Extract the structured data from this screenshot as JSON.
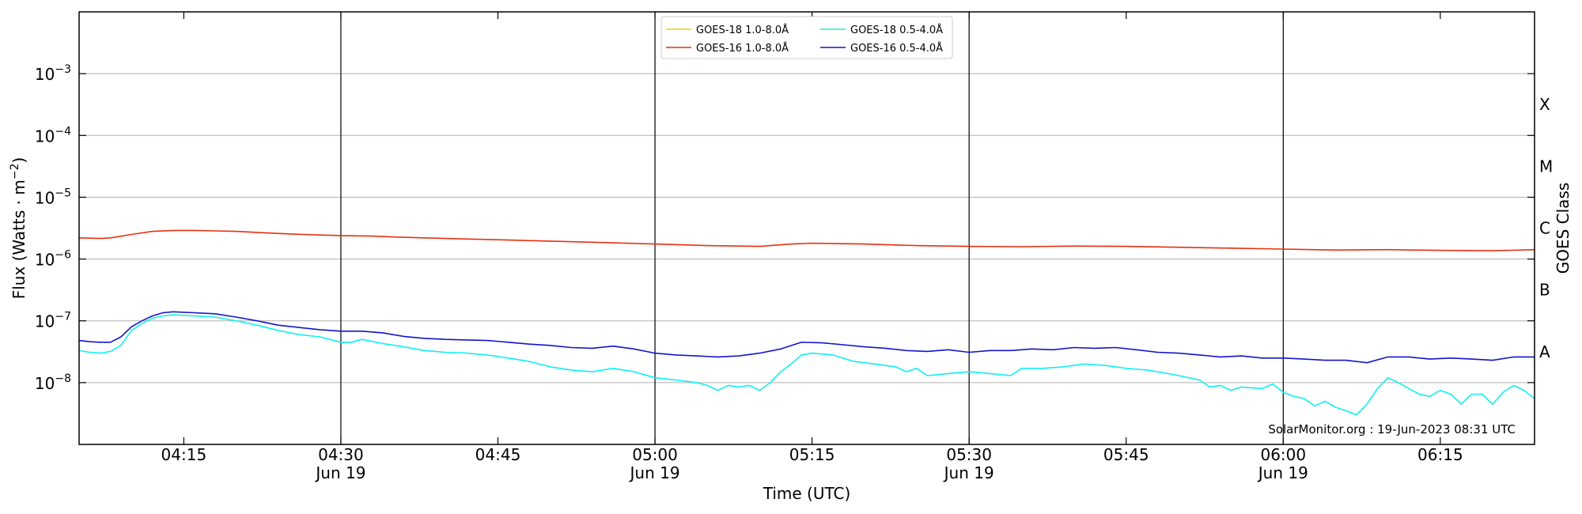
{
  "chart_data": {
    "type": "line",
    "x_range": [
      "2023-06-19T04:05",
      "2023-06-19T06:24"
    ],
    "x_ticks": [
      {
        "time": "04:15",
        "label": "04:15",
        "sublabel": ""
      },
      {
        "time": "04:30",
        "label": "04:30",
        "sublabel": "Jun 19"
      },
      {
        "time": "04:45",
        "label": "04:45",
        "sublabel": ""
      },
      {
        "time": "05:00",
        "label": "05:00",
        "sublabel": "Jun 19"
      },
      {
        "time": "05:15",
        "label": "05:15",
        "sublabel": ""
      },
      {
        "time": "05:30",
        "label": "05:30",
        "sublabel": "Jun 19"
      },
      {
        "time": "05:45",
        "label": "05:45",
        "sublabel": ""
      },
      {
        "time": "06:00",
        "label": "06:00",
        "sublabel": "Jun 19"
      },
      {
        "time": "06:15",
        "label": "06:15",
        "sublabel": ""
      }
    ],
    "day_lines": [
      "04:30",
      "05:00",
      "05:30",
      "06:00"
    ],
    "y_scale": "log",
    "y_range": [
      1e-09,
      0.01
    ],
    "y_ticks": [
      {
        "value": 1e-08,
        "mantissa": "10",
        "exp": "−8"
      },
      {
        "value": 1e-07,
        "mantissa": "10",
        "exp": "−7"
      },
      {
        "value": 1e-06,
        "mantissa": "10",
        "exp": "−6"
      },
      {
        "value": 1e-05,
        "mantissa": "10",
        "exp": "−5"
      },
      {
        "value": 0.0001,
        "mantissa": "10",
        "exp": "−4"
      },
      {
        "value": 0.001,
        "mantissa": "10",
        "exp": "−3"
      }
    ],
    "xlabel": "Time (UTC)",
    "ylabel_prefix": "Flux (Watts · m",
    "ylabel_exp": "−2",
    "ylabel_suffix": ")",
    "right_label": "GOES Class",
    "goes_classes": [
      {
        "label": "X",
        "value": 0.0003162
      },
      {
        "label": "M",
        "value": 3.162e-05
      },
      {
        "label": "C",
        "value": 3.162e-06
      },
      {
        "label": "B",
        "value": 3.162e-07
      },
      {
        "label": "A",
        "value": 3.162e-08
      }
    ],
    "horizontal_grid": true,
    "legend_position": "top-center",
    "watermark": "SolarMonitor.org : 19-Jun-2023 08:31 UTC",
    "series": [
      {
        "name": "GOES-18 1.0-8.0Å",
        "color": "#f0d000",
        "points": []
      },
      {
        "name": "GOES-16 1.0-8.0Å",
        "color": "#e83010",
        "points": [
          [
            "04:05",
            2.2e-06
          ],
          [
            "04:07",
            2.15e-06
          ],
          [
            "04:08",
            2.2e-06
          ],
          [
            "04:10",
            2.5e-06
          ],
          [
            "04:12",
            2.8e-06
          ],
          [
            "04:14",
            2.9e-06
          ],
          [
            "04:16",
            2.9e-06
          ],
          [
            "04:18",
            2.85e-06
          ],
          [
            "04:20",
            2.8e-06
          ],
          [
            "04:22",
            2.7e-06
          ],
          [
            "04:25",
            2.55e-06
          ],
          [
            "04:28",
            2.45e-06
          ],
          [
            "04:30",
            2.4e-06
          ],
          [
            "04:33",
            2.35e-06
          ],
          [
            "04:36",
            2.25e-06
          ],
          [
            "04:40",
            2.15e-06
          ],
          [
            "04:45",
            2.05e-06
          ],
          [
            "04:50",
            1.95e-06
          ],
          [
            "04:55",
            1.85e-06
          ],
          [
            "05:00",
            1.75e-06
          ],
          [
            "05:05",
            1.65e-06
          ],
          [
            "05:10",
            1.6e-06
          ],
          [
            "05:13",
            1.75e-06
          ],
          [
            "05:15",
            1.8e-06
          ],
          [
            "05:20",
            1.75e-06
          ],
          [
            "05:25",
            1.65e-06
          ],
          [
            "05:30",
            1.6e-06
          ],
          [
            "05:35",
            1.58e-06
          ],
          [
            "05:40",
            1.62e-06
          ],
          [
            "05:45",
            1.6e-06
          ],
          [
            "05:50",
            1.55e-06
          ],
          [
            "05:55",
            1.5e-06
          ],
          [
            "06:00",
            1.45e-06
          ],
          [
            "06:05",
            1.4e-06
          ],
          [
            "06:10",
            1.42e-06
          ],
          [
            "06:15",
            1.38e-06
          ],
          [
            "06:20",
            1.36e-06
          ],
          [
            "06:24",
            1.42e-06
          ]
        ]
      },
      {
        "name": "GOES-18 0.5-4.0Å",
        "color": "#10f0f0",
        "points": [
          [
            "04:05",
            3.3e-08
          ],
          [
            "04:06",
            3.1e-08
          ],
          [
            "04:07",
            3e-08
          ],
          [
            "04:08",
            3.2e-08
          ],
          [
            "04:09",
            4e-08
          ],
          [
            "04:10",
            7e-08
          ],
          [
            "04:11",
            9e-08
          ],
          [
            "04:12",
            1.1e-07
          ],
          [
            "04:13",
            1.2e-07
          ],
          [
            "04:14",
            1.25e-07
          ],
          [
            "04:16",
            1.2e-07
          ],
          [
            "04:18",
            1.15e-07
          ],
          [
            "04:20",
            1e-07
          ],
          [
            "04:22",
            8.5e-08
          ],
          [
            "04:24",
            7e-08
          ],
          [
            "04:26",
            6e-08
          ],
          [
            "04:28",
            5.5e-08
          ],
          [
            "04:30",
            4.5e-08
          ],
          [
            "04:31",
            4.5e-08
          ],
          [
            "04:32",
            5e-08
          ],
          [
            "04:34",
            4.3e-08
          ],
          [
            "04:36",
            3.8e-08
          ],
          [
            "04:38",
            3.3e-08
          ],
          [
            "04:40",
            3.1e-08
          ],
          [
            "04:42",
            3e-08
          ],
          [
            "04:44",
            2.8e-08
          ],
          [
            "04:46",
            2.5e-08
          ],
          [
            "04:48",
            2.2e-08
          ],
          [
            "04:50",
            1.8e-08
          ],
          [
            "04:52",
            1.6e-08
          ],
          [
            "04:54",
            1.5e-08
          ],
          [
            "04:56",
            1.7e-08
          ],
          [
            "04:58",
            1.5e-08
          ],
          [
            "05:00",
            1.2e-08
          ],
          [
            "05:02",
            1.1e-08
          ],
          [
            "05:04",
            1e-08
          ],
          [
            "05:05",
            9e-09
          ],
          [
            "05:06",
            7.5e-09
          ],
          [
            "05:07",
            9e-09
          ],
          [
            "05:08",
            8.5e-09
          ],
          [
            "05:09",
            9e-09
          ],
          [
            "05:10",
            7.5e-09
          ],
          [
            "05:11",
            1e-08
          ],
          [
            "05:12",
            1.5e-08
          ],
          [
            "05:13",
            2e-08
          ],
          [
            "05:14",
            2.8e-08
          ],
          [
            "05:15",
            3e-08
          ],
          [
            "05:17",
            2.8e-08
          ],
          [
            "05:19",
            2.2e-08
          ],
          [
            "05:21",
            2e-08
          ],
          [
            "05:23",
            1.8e-08
          ],
          [
            "05:24",
            1.5e-08
          ],
          [
            "05:25",
            1.7e-08
          ],
          [
            "05:26",
            1.3e-08
          ],
          [
            "05:28",
            1.4e-08
          ],
          [
            "05:30",
            1.5e-08
          ],
          [
            "05:32",
            1.4e-08
          ],
          [
            "05:34",
            1.3e-08
          ],
          [
            "05:35",
            1.7e-08
          ],
          [
            "05:37",
            1.7e-08
          ],
          [
            "05:39",
            1.8e-08
          ],
          [
            "05:41",
            2e-08
          ],
          [
            "05:43",
            1.9e-08
          ],
          [
            "05:45",
            1.7e-08
          ],
          [
            "05:47",
            1.6e-08
          ],
          [
            "05:49",
            1.4e-08
          ],
          [
            "05:51",
            1.2e-08
          ],
          [
            "05:52",
            1.1e-08
          ],
          [
            "05:53",
            8.5e-09
          ],
          [
            "05:54",
            9e-09
          ],
          [
            "05:55",
            7.5e-09
          ],
          [
            "05:56",
            8.5e-09
          ],
          [
            "05:58",
            8e-09
          ],
          [
            "05:59",
            9.5e-09
          ],
          [
            "06:00",
            7e-09
          ],
          [
            "06:01",
            6e-09
          ],
          [
            "06:02",
            5.5e-09
          ],
          [
            "06:03",
            4.2e-09
          ],
          [
            "06:04",
            5e-09
          ],
          [
            "06:05",
            4e-09
          ],
          [
            "06:06",
            3.5e-09
          ],
          [
            "06:07",
            3e-09
          ],
          [
            "06:08",
            4.5e-09
          ],
          [
            "06:09",
            8e-09
          ],
          [
            "06:10",
            1.2e-08
          ],
          [
            "06:11",
            1e-08
          ],
          [
            "06:12",
            8e-09
          ],
          [
            "06:13",
            6.5e-09
          ],
          [
            "06:14",
            6e-09
          ],
          [
            "06:15",
            7.5e-09
          ],
          [
            "06:16",
            6.5e-09
          ],
          [
            "06:17",
            4.5e-09
          ],
          [
            "06:18",
            6.5e-09
          ],
          [
            "06:19",
            6.5e-09
          ],
          [
            "06:20",
            4.5e-09
          ],
          [
            "06:21",
            7e-09
          ],
          [
            "06:22",
            9e-09
          ],
          [
            "06:23",
            7.5e-09
          ],
          [
            "06:24",
            5.5e-09
          ]
        ]
      },
      {
        "name": "GOES-16 0.5-4.0Å",
        "color": "#1414cc",
        "points": [
          [
            "04:05",
            4.8e-08
          ],
          [
            "04:06",
            4.6e-08
          ],
          [
            "04:07",
            4.5e-08
          ],
          [
            "04:08",
            4.5e-08
          ],
          [
            "04:09",
            5.5e-08
          ],
          [
            "04:10",
            8e-08
          ],
          [
            "04:11",
            1e-07
          ],
          [
            "04:12",
            1.2e-07
          ],
          [
            "04:13",
            1.35e-07
          ],
          [
            "04:14",
            1.4e-07
          ],
          [
            "04:16",
            1.35e-07
          ],
          [
            "04:18",
            1.3e-07
          ],
          [
            "04:20",
            1.15e-07
          ],
          [
            "04:22",
            1e-07
          ],
          [
            "04:24",
            8.5e-08
          ],
          [
            "04:26",
            7.8e-08
          ],
          [
            "04:28",
            7.2e-08
          ],
          [
            "04:30",
            6.8e-08
          ],
          [
            "04:32",
            6.8e-08
          ],
          [
            "04:34",
            6.4e-08
          ],
          [
            "04:36",
            5.6e-08
          ],
          [
            "04:38",
            5.2e-08
          ],
          [
            "04:40",
            5e-08
          ],
          [
            "04:42",
            4.9e-08
          ],
          [
            "04:44",
            4.8e-08
          ],
          [
            "04:46",
            4.5e-08
          ],
          [
            "04:48",
            4.2e-08
          ],
          [
            "04:50",
            4e-08
          ],
          [
            "04:52",
            3.7e-08
          ],
          [
            "04:54",
            3.6e-08
          ],
          [
            "04:56",
            3.9e-08
          ],
          [
            "04:58",
            3.5e-08
          ],
          [
            "05:00",
            3e-08
          ],
          [
            "05:02",
            2.8e-08
          ],
          [
            "05:04",
            2.7e-08
          ],
          [
            "05:06",
            2.6e-08
          ],
          [
            "05:08",
            2.7e-08
          ],
          [
            "05:10",
            3e-08
          ],
          [
            "05:12",
            3.5e-08
          ],
          [
            "05:14",
            4.5e-08
          ],
          [
            "05:16",
            4.4e-08
          ],
          [
            "05:18",
            4.1e-08
          ],
          [
            "05:20",
            3.8e-08
          ],
          [
            "05:22",
            3.6e-08
          ],
          [
            "05:24",
            3.3e-08
          ],
          [
            "05:26",
            3.2e-08
          ],
          [
            "05:28",
            3.4e-08
          ],
          [
            "05:30",
            3.1e-08
          ],
          [
            "05:32",
            3.3e-08
          ],
          [
            "05:34",
            3.3e-08
          ],
          [
            "05:36",
            3.5e-08
          ],
          [
            "05:38",
            3.4e-08
          ],
          [
            "05:40",
            3.7e-08
          ],
          [
            "05:42",
            3.6e-08
          ],
          [
            "05:44",
            3.7e-08
          ],
          [
            "05:46",
            3.4e-08
          ],
          [
            "05:48",
            3.1e-08
          ],
          [
            "05:50",
            3e-08
          ],
          [
            "05:52",
            2.8e-08
          ],
          [
            "05:54",
            2.6e-08
          ],
          [
            "05:56",
            2.7e-08
          ],
          [
            "05:58",
            2.5e-08
          ],
          [
            "06:00",
            2.5e-08
          ],
          [
            "06:02",
            2.4e-08
          ],
          [
            "06:04",
            2.3e-08
          ],
          [
            "06:06",
            2.3e-08
          ],
          [
            "06:08",
            2.1e-08
          ],
          [
            "06:10",
            2.6e-08
          ],
          [
            "06:12",
            2.6e-08
          ],
          [
            "06:14",
            2.4e-08
          ],
          [
            "06:16",
            2.5e-08
          ],
          [
            "06:18",
            2.4e-08
          ],
          [
            "06:20",
            2.3e-08
          ],
          [
            "06:22",
            2.6e-08
          ],
          [
            "06:24",
            2.6e-08
          ]
        ]
      }
    ]
  }
}
